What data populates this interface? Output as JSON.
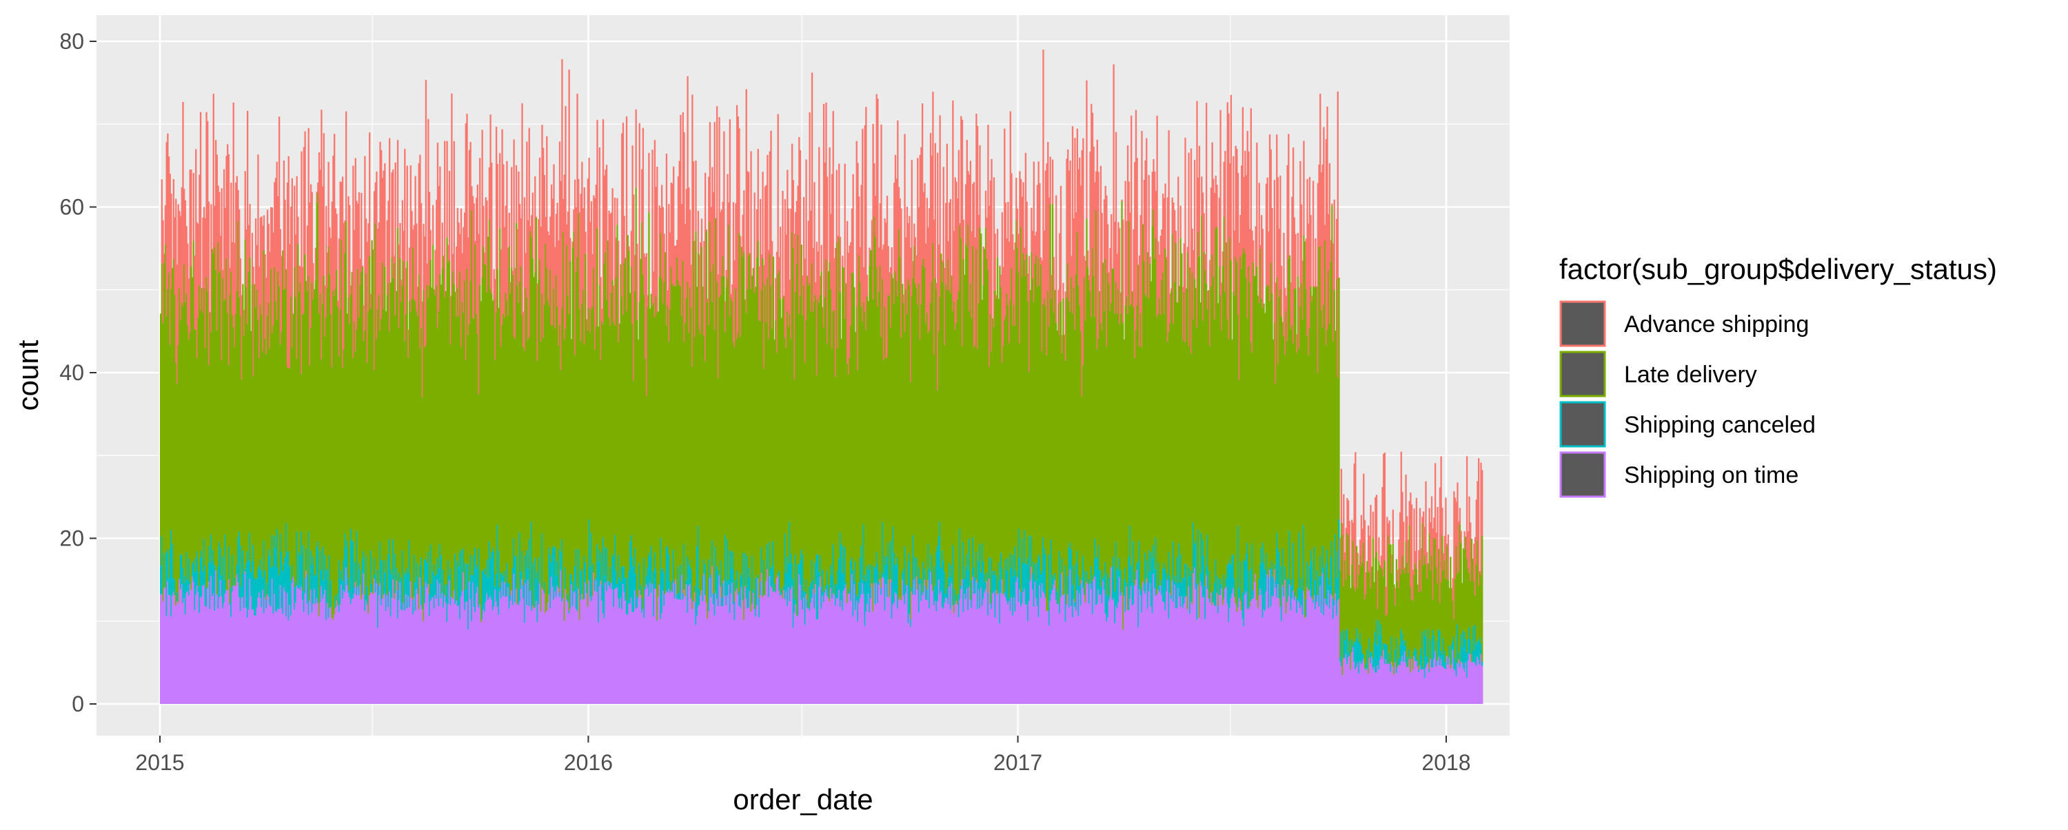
{
  "chart_data": {
    "type": "bar",
    "subtype": "stacked daily counts (histogram by order_date)",
    "xlabel": "order_date",
    "ylabel": "count",
    "x_range": [
      "2015-01-01",
      "2018-01-31"
    ],
    "ylim": [
      0,
      80
    ],
    "x_ticks": [
      "2015",
      "2016",
      "2017",
      "2018"
    ],
    "y_ticks": [
      0,
      20,
      40,
      60,
      80
    ],
    "grid": true,
    "background": "#ebebeb",
    "legend": {
      "title": "factor(sub_group$delivery_status)",
      "position": "right",
      "keys_fill": "#595959"
    },
    "stack_order_bottom_to_top": [
      "Shipping on time",
      "Shipping canceled",
      "Late delivery",
      "Advance shipping"
    ],
    "series": [
      {
        "name": "Advance shipping",
        "color": "#F8766D"
      },
      {
        "name": "Late delivery",
        "color": "#7CAE00"
      },
      {
        "name": "Shipping canceled",
        "color": "#00BFC4"
      },
      {
        "name": "Shipping on time",
        "color": "#C77CFF"
      }
    ],
    "approx_levels": {
      "note": "Daily stacked totals, estimated from gridlines",
      "period_1": {
        "dates": [
          "2015-01-01",
          "2017-10-01"
        ],
        "total_mean": 60,
        "total_range": [
          44,
          79
        ],
        "late_delivery_top_mean": 50,
        "canceled_top_mean": 16,
        "on_time_top_mean": 13
      },
      "period_2": {
        "dates": [
          "2017-10-02",
          "2018-01-31"
        ],
        "total_mean": 22,
        "total_range": [
          14,
          33
        ],
        "late_delivery_top_mean": 17,
        "canceled_top_mean": 7,
        "on_time_top_mean": 5
      }
    }
  }
}
